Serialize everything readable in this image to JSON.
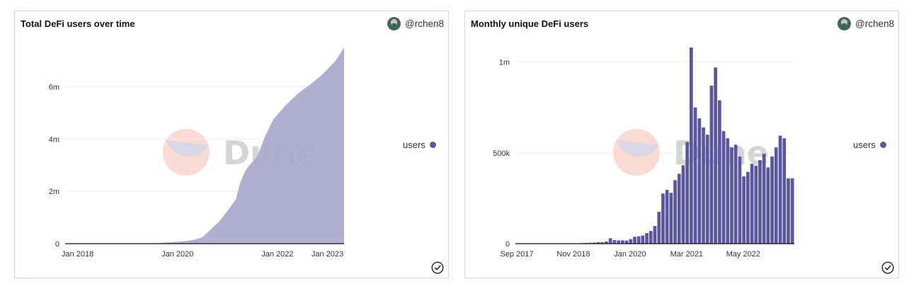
{
  "cards": [
    {
      "title": "Total DeFi users over time",
      "author": "@rchen8",
      "legend_label": "users",
      "watermark": "Dune"
    },
    {
      "title": "Monthly unique DeFi users",
      "author": "@rchen8",
      "legend_label": "users",
      "watermark": "Dune"
    }
  ],
  "colors": {
    "area_fill": "#a9a8ce",
    "bar_fill": "#5a56a0",
    "legend_dot": "#5a56a0",
    "card_border": "#efcfc9"
  },
  "chart_data": [
    {
      "type": "area",
      "title": "Total DeFi users over time",
      "xlabel": "",
      "ylabel": "",
      "x_range": [
        "2017-10",
        "2023-05"
      ],
      "ylim": [
        0,
        7500000
      ],
      "yticks": [
        0,
        2000000,
        4000000,
        6000000
      ],
      "ytick_labels": [
        "0",
        "2m",
        "4m",
        "6m"
      ],
      "xtick_labels": [
        "Jan 2018",
        "Jan 2020",
        "Jan 2022",
        "Jan 2023"
      ],
      "xtick_positions": [
        "2018-01",
        "2020-01",
        "2022-01",
        "2023-01"
      ],
      "grid": true,
      "legend": "right",
      "series": [
        {
          "name": "users",
          "points": [
            [
              "2017-10",
              0
            ],
            [
              "2018-06",
              0
            ],
            [
              "2019-01",
              2000
            ],
            [
              "2019-06",
              10000
            ],
            [
              "2019-09",
              30000
            ],
            [
              "2019-12",
              60000
            ],
            [
              "2020-03",
              100000
            ],
            [
              "2020-05",
              150000
            ],
            [
              "2020-07",
              250000
            ],
            [
              "2020-09",
              550000
            ],
            [
              "2020-11",
              850000
            ],
            [
              "2021-01",
              1250000
            ],
            [
              "2021-03",
              1700000
            ],
            [
              "2021-04",
              2300000
            ],
            [
              "2021-05",
              2700000
            ],
            [
              "2021-06",
              2950000
            ],
            [
              "2021-08",
              3300000
            ],
            [
              "2021-10",
              4100000
            ],
            [
              "2021-12",
              4750000
            ],
            [
              "2022-03",
              5300000
            ],
            [
              "2022-06",
              5750000
            ],
            [
              "2022-09",
              6100000
            ],
            [
              "2022-12",
              6500000
            ],
            [
              "2023-03",
              7000000
            ],
            [
              "2023-05",
              7500000
            ]
          ]
        }
      ]
    },
    {
      "type": "bar",
      "title": "Monthly unique DeFi users",
      "xlabel": "",
      "ylabel": "",
      "x_range": [
        "2017-09",
        "2023-05"
      ],
      "ylim": [
        0,
        1100000
      ],
      "yticks": [
        0,
        500000,
        1000000
      ],
      "ytick_labels": [
        "0",
        "500k",
        "1m"
      ],
      "xtick_labels": [
        "Sep 2017",
        "Nov 2018",
        "Jan 2020",
        "Mar 2021",
        "May 2022"
      ],
      "xtick_positions": [
        "2017-09",
        "2018-11",
        "2020-01",
        "2021-03",
        "2022-05"
      ],
      "grid": true,
      "legend": "right",
      "categories": [
        "2018-10",
        "2018-11",
        "2018-12",
        "2019-01",
        "2019-02",
        "2019-03",
        "2019-04",
        "2019-05",
        "2019-06",
        "2019-07",
        "2019-08",
        "2019-09",
        "2019-10",
        "2019-11",
        "2019-12",
        "2020-01",
        "2020-02",
        "2020-03",
        "2020-04",
        "2020-05",
        "2020-06",
        "2020-07",
        "2020-08",
        "2020-09",
        "2020-10",
        "2020-11",
        "2020-12",
        "2021-01",
        "2021-02",
        "2021-03",
        "2021-04",
        "2021-05",
        "2021-06",
        "2021-07",
        "2021-08",
        "2021-09",
        "2021-10",
        "2021-11",
        "2021-12",
        "2022-01",
        "2022-02",
        "2022-03",
        "2022-04",
        "2022-05",
        "2022-06",
        "2022-07",
        "2022-08",
        "2022-09",
        "2022-10",
        "2022-11",
        "2022-12",
        "2023-01",
        "2023-02",
        "2023-03",
        "2023-04",
        "2023-05"
      ],
      "series": [
        {
          "name": "users",
          "values": [
            1000,
            1000,
            2000,
            3000,
            4000,
            5000,
            6000,
            8000,
            8000,
            12000,
            30000,
            20000,
            18000,
            18000,
            17000,
            25000,
            38000,
            40000,
            45000,
            58000,
            70000,
            97000,
            175000,
            276000,
            296000,
            280000,
            350000,
            385000,
            432000,
            560000,
            1080000,
            750000,
            690000,
            640000,
            600000,
            870000,
            970000,
            790000,
            620000,
            580000,
            530000,
            545000,
            480000,
            370000,
            395000,
            440000,
            430000,
            460000,
            495000,
            420000,
            480000,
            530000,
            595000,
            580000,
            360000,
            360000
          ]
        }
      ]
    }
  ]
}
